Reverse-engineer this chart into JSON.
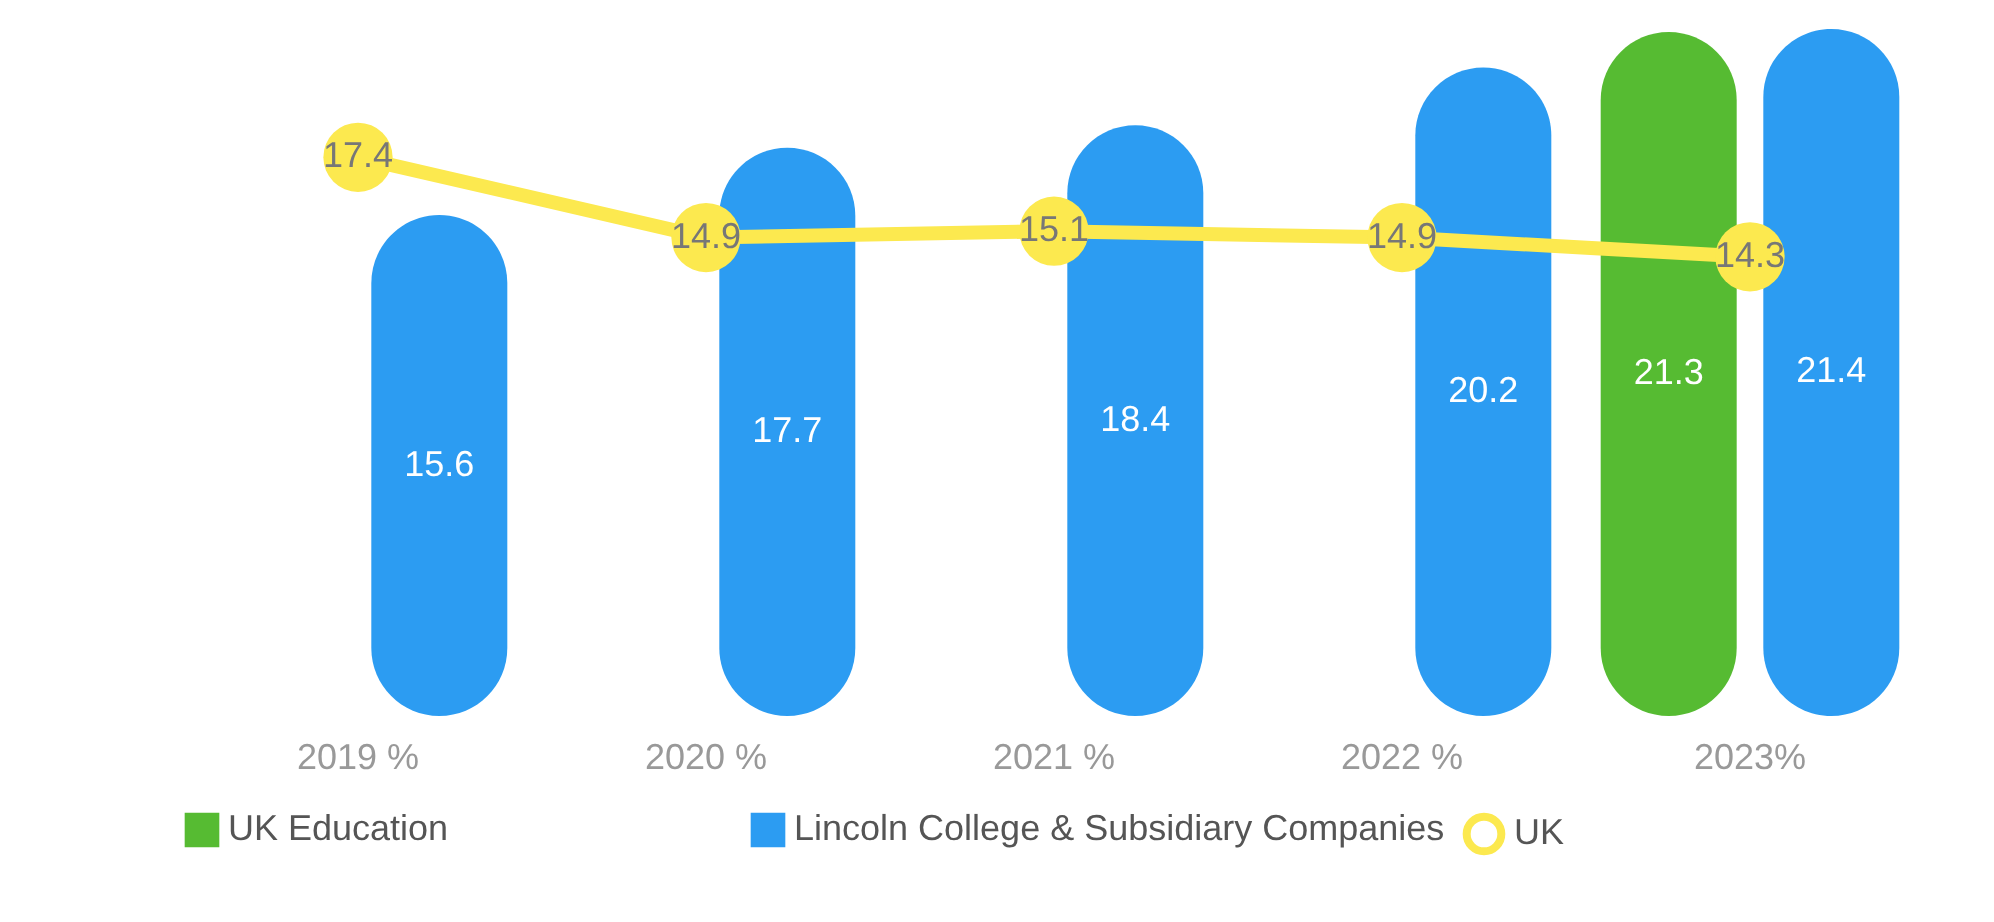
{
  "chart_data": {
    "type": "bar",
    "categories": [
      "2019 %",
      "2020 %",
      "2021 %",
      "2022 %",
      "2023%"
    ],
    "series": [
      {
        "name": "UK",
        "type": "line",
        "color": "#fce94f",
        "marker": "circle",
        "values": [
          17.4,
          14.9,
          15.1,
          14.9,
          14.3
        ]
      },
      {
        "name": "UK Education",
        "color": "#56bb32",
        "values": [
          null,
          null,
          null,
          null,
          21.3
        ]
      },
      {
        "name": "Lincoln College & Subsidiary Companies",
        "color": "#2c9cf2",
        "values": [
          15.6,
          17.7,
          18.4,
          20.2,
          21.4
        ]
      }
    ],
    "ylim": [
      0,
      22.3
    ],
    "tick_labels": "x",
    "data_labels": true,
    "grid": false,
    "legend": "bottom"
  }
}
